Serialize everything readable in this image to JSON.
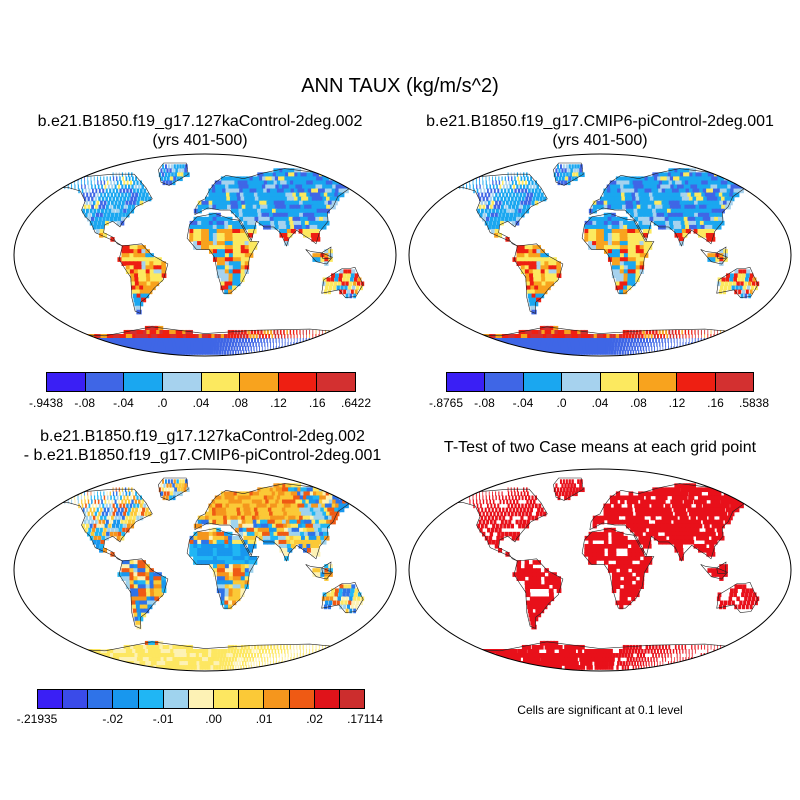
{
  "figure": {
    "main_title": "ANN TAUX (kg/m/s^2)"
  },
  "panels": [
    {
      "id": "case1",
      "title_line1": "b.e21.B1850.f19_g17.127kaControl-2deg.002",
      "title_line2": "(yrs 401-500)",
      "colorbar": {
        "colors": [
          "#3a1ff5",
          "#3f66e6",
          "#1aa7f0",
          "#a6d2ee",
          "#fce95f",
          "#f8a31e",
          "#ee1f12",
          "#d33030"
        ],
        "labels": [
          "-.9438",
          "-.08",
          "-.04",
          ".0",
          ".04",
          ".08",
          ".12",
          ".16",
          ".6422"
        ]
      }
    },
    {
      "id": "case2",
      "title_line1": "b.e21.B1850.f19_g17.CMIP6-piControl-2deg.001",
      "title_line2": "(yrs 401-500)",
      "colorbar": {
        "colors": [
          "#3a1ff5",
          "#3f66e6",
          "#1aa7f0",
          "#a6d2ee",
          "#fce95f",
          "#f8a31e",
          "#ee1f12",
          "#d33030"
        ],
        "labels": [
          "-.8765",
          "-.08",
          "-.04",
          ".0",
          ".04",
          ".08",
          ".12",
          ".16",
          ".5838"
        ]
      }
    },
    {
      "id": "difference",
      "title_line1": "b.e21.B1850.f19_g17.127kaControl-2deg.002",
      "title_line2": "- b.e21.B1850.f19_g17.CMIP6-piControl-2deg.001",
      "colorbar": {
        "colors": [
          "#3a1ff5",
          "#3a4be9",
          "#2f73e8",
          "#1897ee",
          "#20b6f4",
          "#9fd3ee",
          "#fdf2b5",
          "#fde761",
          "#fbc937",
          "#f5961d",
          "#ef5a14",
          "#e0131a",
          "#cc2d2d"
        ],
        "labels": [
          "-.21935",
          "-.02",
          "-.01",
          ".00",
          ".01",
          ".02",
          ".17114"
        ]
      }
    },
    {
      "id": "ttest",
      "title_line1": "T-Test of two Case means at each grid point",
      "note": "Cells are significant at 0.1 level",
      "significant_color": "#e8101a"
    }
  ]
}
